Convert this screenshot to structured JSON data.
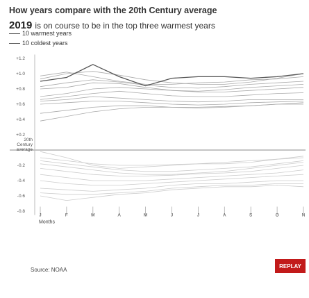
{
  "header": {
    "title": "How years compare with the 20th Century average",
    "subtitle_year": "2019",
    "subtitle_text": "is on course to be in the top three warmest years"
  },
  "legend": [
    {
      "label": "10 warmest years"
    },
    {
      "label": "10 coldest years"
    }
  ],
  "footer": {
    "source": "Source: NOAA",
    "replay_label": "REPLAY"
  },
  "colors": {
    "warm_line": "#aaaaaa",
    "cold_line": "#cccccc",
    "highlight_line": "#555555",
    "baseline": "#888888",
    "replay_bg": "#c21a1a"
  },
  "chart_data": {
    "type": "line",
    "xlabel": "Months",
    "categories": [
      "J",
      "F",
      "M",
      "A",
      "M",
      "J",
      "J",
      "A",
      "S",
      "O",
      "N"
    ],
    "ylim": [
      -0.9,
      1.3
    ],
    "yticks": [
      {
        "value": 1.2,
        "label": "+1.2"
      },
      {
        "value": 1.0,
        "label": "+1.0"
      },
      {
        "value": 0.8,
        "label": "+0.8"
      },
      {
        "value": 0.6,
        "label": "+0.6"
      },
      {
        "value": 0.4,
        "label": "+0.4"
      },
      {
        "value": 0.2,
        "label": "+0.2"
      },
      {
        "value": 0.0,
        "label": "20th Century average"
      },
      {
        "value": -0.2,
        "label": "-0.2"
      },
      {
        "value": -0.4,
        "label": "-0.4"
      },
      {
        "value": -0.6,
        "label": "-0.6"
      },
      {
        "value": -0.8,
        "label": "-0.8"
      }
    ],
    "series": [
      {
        "group": "warm",
        "values": [
          0.93,
          1.0,
          1.03,
          0.98,
          0.92,
          0.88,
          0.86,
          0.86,
          0.89,
          0.94,
          1.0
        ]
      },
      {
        "group": "warm",
        "values": [
          0.97,
          1.02,
          0.96,
          0.9,
          0.86,
          0.86,
          0.88,
          0.89,
          0.92,
          0.93,
          0.96
        ]
      },
      {
        "group": "warm",
        "values": [
          0.83,
          0.88,
          0.92,
          0.89,
          0.85,
          0.82,
          0.81,
          0.83,
          0.86,
          0.88,
          0.9
        ]
      },
      {
        "group": "warm",
        "values": [
          0.8,
          0.82,
          0.88,
          0.87,
          0.82,
          0.78,
          0.77,
          0.79,
          0.82,
          0.84,
          0.86
        ]
      },
      {
        "group": "warm",
        "values": [
          0.7,
          0.74,
          0.8,
          0.82,
          0.8,
          0.78,
          0.76,
          0.76,
          0.78,
          0.8,
          0.82
        ]
      },
      {
        "group": "warm",
        "values": [
          0.66,
          0.7,
          0.74,
          0.77,
          0.74,
          0.71,
          0.7,
          0.7,
          0.72,
          0.74,
          0.75
        ]
      },
      {
        "group": "warm",
        "values": [
          0.64,
          0.66,
          0.7,
          0.68,
          0.66,
          0.64,
          0.63,
          0.64,
          0.66,
          0.66,
          0.66
        ]
      },
      {
        "group": "warm",
        "values": [
          0.6,
          0.62,
          0.64,
          0.64,
          0.62,
          0.6,
          0.59,
          0.6,
          0.62,
          0.63,
          0.64
        ]
      },
      {
        "group": "warm",
        "values": [
          0.48,
          0.52,
          0.56,
          0.58,
          0.58,
          0.56,
          0.55,
          0.56,
          0.58,
          0.6,
          0.62
        ]
      },
      {
        "group": "warm",
        "values": [
          0.38,
          0.44,
          0.5,
          0.54,
          0.56,
          0.56,
          0.56,
          0.57,
          0.58,
          0.6,
          0.6
        ]
      },
      {
        "group": "highlight",
        "values": [
          0.9,
          0.95,
          1.12,
          0.96,
          0.84,
          0.94,
          0.96,
          0.96,
          0.94,
          0.96,
          1.0
        ]
      },
      {
        "group": "cold",
        "values": [
          -0.02,
          -0.1,
          -0.2,
          -0.24,
          -0.22,
          -0.2,
          -0.18,
          -0.16,
          -0.14,
          -0.12,
          -0.1
        ]
      },
      {
        "group": "cold",
        "values": [
          -0.1,
          -0.14,
          -0.18,
          -0.2,
          -0.2,
          -0.19,
          -0.18,
          -0.18,
          -0.16,
          -0.12,
          -0.08
        ]
      },
      {
        "group": "cold",
        "values": [
          -0.14,
          -0.18,
          -0.22,
          -0.26,
          -0.28,
          -0.28,
          -0.26,
          -0.24,
          -0.22,
          -0.18,
          -0.14
        ]
      },
      {
        "group": "cold",
        "values": [
          -0.18,
          -0.22,
          -0.26,
          -0.3,
          -0.32,
          -0.32,
          -0.3,
          -0.28,
          -0.24,
          -0.2,
          -0.16
        ]
      },
      {
        "group": "cold",
        "values": [
          -0.24,
          -0.28,
          -0.32,
          -0.34,
          -0.34,
          -0.33,
          -0.31,
          -0.3,
          -0.28,
          -0.24,
          -0.2
        ]
      },
      {
        "group": "cold",
        "values": [
          -0.32,
          -0.36,
          -0.4,
          -0.4,
          -0.4,
          -0.38,
          -0.36,
          -0.34,
          -0.32,
          -0.3,
          -0.26
        ]
      },
      {
        "group": "cold",
        "values": [
          -0.4,
          -0.44,
          -0.46,
          -0.46,
          -0.44,
          -0.42,
          -0.4,
          -0.38,
          -0.36,
          -0.34,
          -0.32
        ]
      },
      {
        "group": "cold",
        "values": [
          -0.5,
          -0.52,
          -0.54,
          -0.52,
          -0.5,
          -0.46,
          -0.44,
          -0.44,
          -0.42,
          -0.4,
          -0.4
        ]
      },
      {
        "group": "cold",
        "values": [
          -0.56,
          -0.58,
          -0.58,
          -0.56,
          -0.54,
          -0.5,
          -0.48,
          -0.46,
          -0.46,
          -0.44,
          -0.44
        ]
      },
      {
        "group": "cold",
        "values": [
          -0.6,
          -0.66,
          -0.62,
          -0.58,
          -0.56,
          -0.52,
          -0.5,
          -0.48,
          -0.48,
          -0.46,
          -0.48
        ]
      }
    ]
  }
}
